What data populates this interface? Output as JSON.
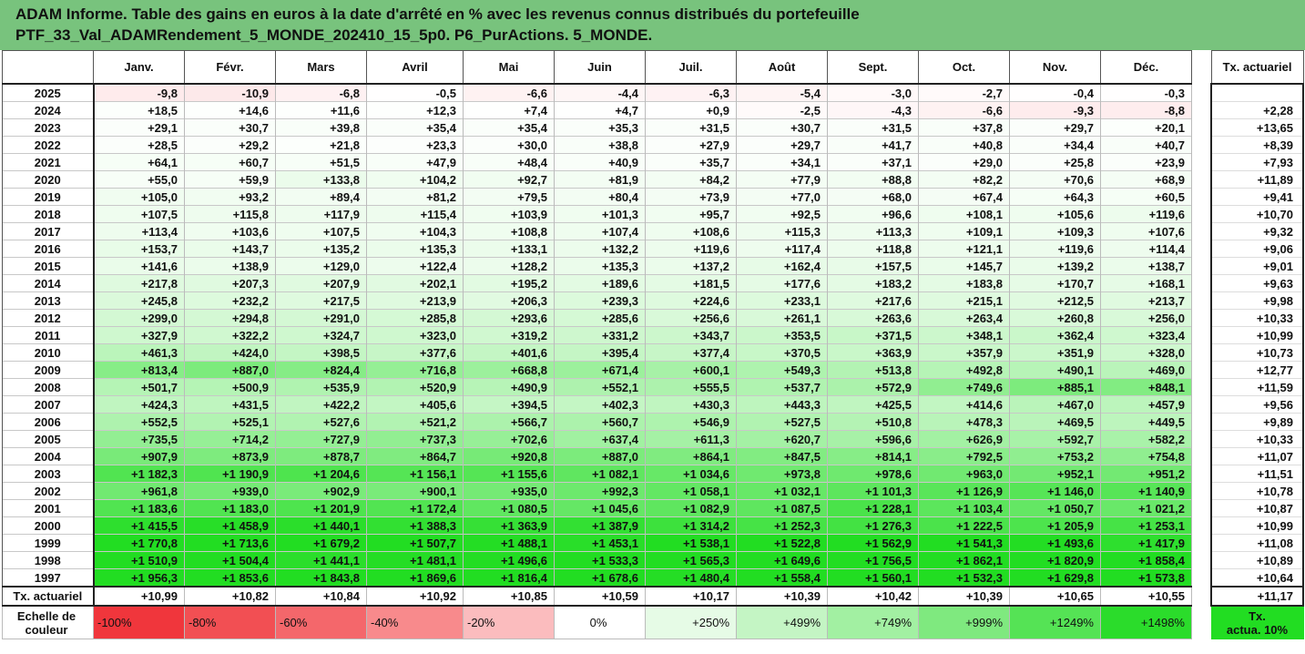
{
  "title": {
    "line1": "ADAM Informe. Table des gains en euros à la date d'arrêté en % avec les revenus connus distribués du portefeuille",
    "line2": "PTF_33_Val_ADAMRendement_5_MONDE_202410_15_5p0. P6_PurActions. 5_MONDE."
  },
  "months": [
    "Janv.",
    "Févr.",
    "Mars",
    "Avril",
    "Mai",
    "Juin",
    "Juil.",
    "Août",
    "Sept.",
    "Oct.",
    "Nov.",
    "Déc."
  ],
  "side_header": "Tx. actuariel",
  "rows": [
    {
      "year": "2025",
      "values": [
        "-9,8",
        "-10,9",
        "-6,8",
        "-0,5",
        "-6,6",
        "-4,4",
        "-6,3",
        "-5,4",
        "-3,0",
        "-2,7",
        "-0,4",
        "-0,3"
      ],
      "tx": ""
    },
    {
      "year": "2024",
      "values": [
        "+18,5",
        "+14,6",
        "+11,6",
        "+12,3",
        "+7,4",
        "+4,7",
        "+0,9",
        "-2,5",
        "-4,3",
        "-6,6",
        "-9,3",
        "-8,8"
      ],
      "tx": "+2,28"
    },
    {
      "year": "2023",
      "values": [
        "+29,1",
        "+30,7",
        "+39,8",
        "+35,4",
        "+35,4",
        "+35,3",
        "+31,5",
        "+30,7",
        "+31,5",
        "+37,8",
        "+29,7",
        "+20,1"
      ],
      "tx": "+13,65"
    },
    {
      "year": "2022",
      "values": [
        "+28,5",
        "+29,2",
        "+21,8",
        "+23,3",
        "+30,0",
        "+38,8",
        "+27,9",
        "+29,7",
        "+41,7",
        "+40,8",
        "+34,4",
        "+40,7"
      ],
      "tx": "+8,39"
    },
    {
      "year": "2021",
      "values": [
        "+64,1",
        "+60,7",
        "+51,5",
        "+47,9",
        "+48,4",
        "+40,9",
        "+35,7",
        "+34,1",
        "+37,1",
        "+29,0",
        "+25,8",
        "+23,9"
      ],
      "tx": "+7,93"
    },
    {
      "year": "2020",
      "values": [
        "+55,0",
        "+59,9",
        "+133,8",
        "+104,2",
        "+92,7",
        "+81,9",
        "+84,2",
        "+77,9",
        "+88,8",
        "+82,2",
        "+70,6",
        "+68,9"
      ],
      "tx": "+11,89"
    },
    {
      "year": "2019",
      "values": [
        "+105,0",
        "+93,2",
        "+89,4",
        "+81,2",
        "+79,5",
        "+80,4",
        "+73,9",
        "+77,0",
        "+68,0",
        "+67,4",
        "+64,3",
        "+60,5"
      ],
      "tx": "+9,41"
    },
    {
      "year": "2018",
      "values": [
        "+107,5",
        "+115,8",
        "+117,9",
        "+115,4",
        "+103,9",
        "+101,3",
        "+95,7",
        "+92,5",
        "+96,6",
        "+108,1",
        "+105,6",
        "+119,6"
      ],
      "tx": "+10,70"
    },
    {
      "year": "2017",
      "values": [
        "+113,4",
        "+103,6",
        "+107,5",
        "+104,3",
        "+108,8",
        "+107,4",
        "+108,6",
        "+115,3",
        "+113,3",
        "+109,1",
        "+109,3",
        "+107,6"
      ],
      "tx": "+9,32"
    },
    {
      "year": "2016",
      "values": [
        "+153,7",
        "+143,7",
        "+135,2",
        "+135,3",
        "+133,1",
        "+132,2",
        "+119,6",
        "+117,4",
        "+118,8",
        "+121,1",
        "+119,6",
        "+114,4"
      ],
      "tx": "+9,06"
    },
    {
      "year": "2015",
      "values": [
        "+141,6",
        "+138,9",
        "+129,0",
        "+122,4",
        "+128,2",
        "+135,3",
        "+137,2",
        "+162,4",
        "+157,5",
        "+145,7",
        "+139,2",
        "+138,7"
      ],
      "tx": "+9,01"
    },
    {
      "year": "2014",
      "values": [
        "+217,8",
        "+207,3",
        "+207,9",
        "+202,1",
        "+195,2",
        "+189,6",
        "+181,5",
        "+177,6",
        "+183,2",
        "+183,8",
        "+170,7",
        "+168,1"
      ],
      "tx": "+9,63"
    },
    {
      "year": "2013",
      "values": [
        "+245,8",
        "+232,2",
        "+217,5",
        "+213,9",
        "+206,3",
        "+239,3",
        "+224,6",
        "+233,1",
        "+217,6",
        "+215,1",
        "+212,5",
        "+213,7"
      ],
      "tx": "+9,98"
    },
    {
      "year": "2012",
      "values": [
        "+299,0",
        "+294,8",
        "+291,0",
        "+285,8",
        "+293,6",
        "+285,6",
        "+256,6",
        "+261,1",
        "+263,6",
        "+263,4",
        "+260,8",
        "+256,0"
      ],
      "tx": "+10,33"
    },
    {
      "year": "2011",
      "values": [
        "+327,9",
        "+322,2",
        "+324,7",
        "+323,0",
        "+319,2",
        "+331,2",
        "+343,7",
        "+353,5",
        "+371,5",
        "+348,1",
        "+362,4",
        "+323,4"
      ],
      "tx": "+10,99"
    },
    {
      "year": "2010",
      "values": [
        "+461,3",
        "+424,0",
        "+398,5",
        "+377,6",
        "+401,6",
        "+395,4",
        "+377,4",
        "+370,5",
        "+363,9",
        "+357,9",
        "+351,9",
        "+328,0"
      ],
      "tx": "+10,73"
    },
    {
      "year": "2009",
      "values": [
        "+813,4",
        "+887,0",
        "+824,4",
        "+716,8",
        "+668,8",
        "+671,4",
        "+600,1",
        "+549,3",
        "+513,8",
        "+492,8",
        "+490,1",
        "+469,0"
      ],
      "tx": "+12,77"
    },
    {
      "year": "2008",
      "values": [
        "+501,7",
        "+500,9",
        "+535,9",
        "+520,9",
        "+490,9",
        "+552,1",
        "+555,5",
        "+537,7",
        "+572,9",
        "+749,6",
        "+885,1",
        "+848,1"
      ],
      "tx": "+11,59"
    },
    {
      "year": "2007",
      "values": [
        "+424,3",
        "+431,5",
        "+422,2",
        "+405,6",
        "+394,5",
        "+402,3",
        "+430,3",
        "+443,3",
        "+425,5",
        "+414,6",
        "+467,0",
        "+457,9"
      ],
      "tx": "+9,56"
    },
    {
      "year": "2006",
      "values": [
        "+552,5",
        "+525,1",
        "+527,6",
        "+521,2",
        "+566,7",
        "+560,7",
        "+546,9",
        "+527,5",
        "+510,8",
        "+478,3",
        "+469,5",
        "+449,5"
      ],
      "tx": "+9,89"
    },
    {
      "year": "2005",
      "values": [
        "+735,5",
        "+714,2",
        "+727,9",
        "+737,3",
        "+702,6",
        "+637,4",
        "+611,3",
        "+620,7",
        "+596,6",
        "+626,9",
        "+592,7",
        "+582,2"
      ],
      "tx": "+10,33"
    },
    {
      "year": "2004",
      "values": [
        "+907,9",
        "+873,9",
        "+878,7",
        "+864,7",
        "+920,8",
        "+887,0",
        "+864,1",
        "+847,5",
        "+814,1",
        "+792,5",
        "+753,2",
        "+754,8"
      ],
      "tx": "+11,07"
    },
    {
      "year": "2003",
      "values": [
        "+1 182,3",
        "+1 190,9",
        "+1 204,6",
        "+1 156,1",
        "+1 155,6",
        "+1 082,1",
        "+1 034,6",
        "+973,8",
        "+978,6",
        "+963,0",
        "+952,1",
        "+951,2"
      ],
      "tx": "+11,51"
    },
    {
      "year": "2002",
      "values": [
        "+961,8",
        "+939,0",
        "+902,9",
        "+900,1",
        "+935,0",
        "+992,3",
        "+1 058,1",
        "+1 032,1",
        "+1 101,3",
        "+1 126,9",
        "+1 146,0",
        "+1 140,9"
      ],
      "tx": "+10,78"
    },
    {
      "year": "2001",
      "values": [
        "+1 183,6",
        "+1 183,0",
        "+1 201,9",
        "+1 172,4",
        "+1 080,5",
        "+1 045,6",
        "+1 082,9",
        "+1 087,5",
        "+1 228,1",
        "+1 103,4",
        "+1 050,7",
        "+1 021,2"
      ],
      "tx": "+10,87"
    },
    {
      "year": "2000",
      "values": [
        "+1 415,5",
        "+1 458,9",
        "+1 440,1",
        "+1 388,3",
        "+1 363,9",
        "+1 387,9",
        "+1 314,2",
        "+1 252,3",
        "+1 276,3",
        "+1 222,5",
        "+1 205,9",
        "+1 253,1"
      ],
      "tx": "+10,99"
    },
    {
      "year": "1999",
      "values": [
        "+1 770,8",
        "+1 713,6",
        "+1 679,2",
        "+1 507,7",
        "+1 488,1",
        "+1 453,1",
        "+1 538,1",
        "+1 522,8",
        "+1 562,9",
        "+1 541,3",
        "+1 493,6",
        "+1 417,9"
      ],
      "tx": "+11,08"
    },
    {
      "year": "1998",
      "values": [
        "+1 510,9",
        "+1 504,4",
        "+1 441,1",
        "+1 481,1",
        "+1 496,6",
        "+1 533,3",
        "+1 565,3",
        "+1 649,6",
        "+1 756,5",
        "+1 862,1",
        "+1 820,9",
        "+1 858,4"
      ],
      "tx": "+10,89"
    },
    {
      "year": "1997",
      "values": [
        "+1 956,3",
        "+1 853,6",
        "+1 843,8",
        "+1 869,6",
        "+1 816,4",
        "+1 678,6",
        "+1 480,4",
        "+1 558,4",
        "+1 560,1",
        "+1 532,3",
        "+1 629,8",
        "+1 573,8"
      ],
      "tx": "+10,64"
    }
  ],
  "tx_row": {
    "label": "Tx. actuariel",
    "values": [
      "+10,99",
      "+10,82",
      "+10,84",
      "+10,92",
      "+10,85",
      "+10,59",
      "+10,17",
      "+10,39",
      "+10,42",
      "+10,39",
      "+10,65",
      "+10,55"
    ],
    "tx": "+11,17"
  },
  "scale": {
    "label_line1": "Echelle de",
    "label_line2": "couleur",
    "items": [
      {
        "text": "-100%",
        "color": "#f0363c",
        "align": "left"
      },
      {
        "text": "-80%",
        "color": "#f24f53",
        "align": "left"
      },
      {
        "text": "-60%",
        "color": "#f4676b",
        "align": "left"
      },
      {
        "text": "-40%",
        "color": "#f88a8c",
        "align": "left"
      },
      {
        "text": "-20%",
        "color": "#fbbcbe",
        "align": "left"
      },
      {
        "text": "0%",
        "color": "#ffffff",
        "align": "center"
      },
      {
        "text": "+250%",
        "color": "#e6fbe6",
        "align": "right"
      },
      {
        "text": "+499%",
        "color": "#c4f5c4",
        "align": "right"
      },
      {
        "text": "+749%",
        "color": "#a2f0a2",
        "align": "right"
      },
      {
        "text": "+999%",
        "color": "#7fe97f",
        "align": "right"
      },
      {
        "text": "+1249%",
        "color": "#55e355",
        "align": "right"
      },
      {
        "text": "+1498%",
        "color": "#2bdc2b",
        "align": "right"
      }
    ],
    "side_line1": "Tx.",
    "side_line2": "actua. 10%",
    "side_color": "#22dd22"
  }
}
